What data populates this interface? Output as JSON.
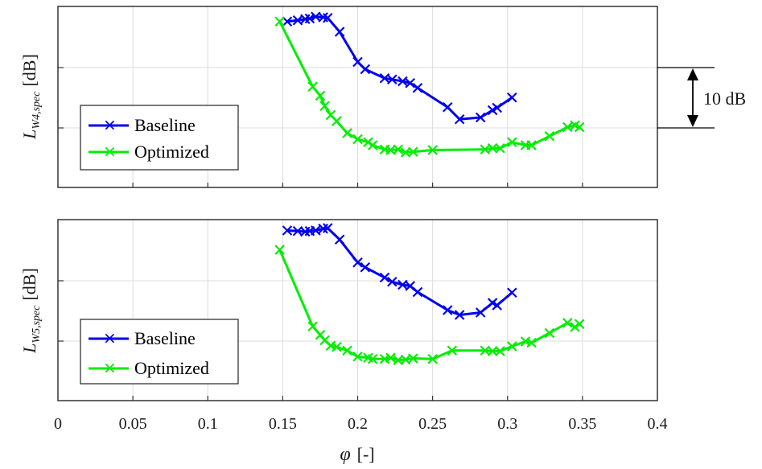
{
  "chart_data": [
    {
      "type": "line",
      "ylabel_main": "L",
      "ylabel_sub": "W4,spec",
      "ylabel_unit": "[dB]",
      "xlim": [
        0,
        0.4
      ],
      "grid": true,
      "legend_position": "lower-left",
      "annotation": "10 dB",
      "series": [
        {
          "name": "Baseline",
          "color": "#0000ee",
          "x": [
            0.153,
            0.16,
            0.165,
            0.168,
            0.172,
            0.177,
            0.18,
            0.188,
            0.2,
            0.205,
            0.218,
            0.223,
            0.23,
            0.235,
            0.24,
            0.26,
            0.268,
            0.282,
            0.29,
            0.293,
            0.303
          ],
          "y": [
            12.0,
            12.2,
            12.4,
            12.5,
            12.8,
            12.7,
            12.6,
            10.3,
            5.3,
            4.1,
            2.6,
            2.4,
            2.1,
            1.8,
            1.0,
            -2.2,
            -4.2,
            -3.9,
            -2.7,
            -2.3,
            -0.6
          ]
        },
        {
          "name": "Optimized",
          "color": "#00ee00",
          "x": [
            0.148,
            0.17,
            0.175,
            0.178,
            0.182,
            0.186,
            0.193,
            0.2,
            0.207,
            0.21,
            0.218,
            0.222,
            0.227,
            0.232,
            0.237,
            0.25,
            0.285,
            0.29,
            0.295,
            0.303,
            0.312,
            0.316,
            0.328,
            0.34,
            0.345,
            0.348
          ],
          "y": [
            12.0,
            1.2,
            -0.3,
            -2.0,
            -3.5,
            -4.5,
            -6.5,
            -7.5,
            -8.0,
            -8.5,
            -9.2,
            -9.3,
            -9.2,
            -9.7,
            -9.6,
            -9.3,
            -9.2,
            -9.0,
            -9.0,
            -8.0,
            -8.5,
            -8.5,
            -7.0,
            -5.5,
            -5.2,
            -5.5
          ]
        }
      ]
    },
    {
      "type": "line",
      "ylabel_main": "L",
      "ylabel_sub": "W5,spec",
      "ylabel_unit": "[dB]",
      "xlabel_main": "φ",
      "xlabel_unit": "[-]",
      "xlim": [
        0,
        0.4
      ],
      "x_ticks": [
        "0",
        "0.05",
        "0.1",
        "0.15",
        "0.2",
        "0.25",
        "0.3",
        "0.35",
        "0.4"
      ],
      "grid": true,
      "legend_position": "lower-left",
      "series": [
        {
          "name": "Baseline",
          "color": "#0000ee",
          "x": [
            0.153,
            0.16,
            0.165,
            0.168,
            0.172,
            0.177,
            0.18,
            0.188,
            0.2,
            0.205,
            0.218,
            0.223,
            0.23,
            0.235,
            0.24,
            0.26,
            0.268,
            0.282,
            0.29,
            0.293,
            0.303
          ],
          "y": [
            8.7,
            8.6,
            8.5,
            8.6,
            8.7,
            9.0,
            9.1,
            7.2,
            3.4,
            2.6,
            0.9,
            0.2,
            -0.3,
            -0.5,
            -1.5,
            -4.5,
            -5.3,
            -4.9,
            -3.3,
            -3.7,
            -1.6
          ]
        },
        {
          "name": "Optimized",
          "color": "#00ee00",
          "x": [
            0.148,
            0.17,
            0.175,
            0.178,
            0.182,
            0.186,
            0.193,
            0.2,
            0.207,
            0.21,
            0.218,
            0.222,
            0.227,
            0.232,
            0.237,
            0.25,
            0.263,
            0.285,
            0.29,
            0.295,
            0.303,
            0.312,
            0.316,
            0.328,
            0.34,
            0.345,
            0.348
          ],
          "y": [
            5.5,
            -7.2,
            -8.6,
            -9.5,
            -10.4,
            -10.6,
            -11.2,
            -12.2,
            -12.4,
            -12.6,
            -12.6,
            -12.4,
            -12.8,
            -12.7,
            -12.5,
            -12.6,
            -11.2,
            -11.2,
            -11.3,
            -11.3,
            -10.5,
            -9.7,
            -9.9,
            -8.3,
            -6.6,
            -7.3,
            -6.8
          ]
        }
      ]
    }
  ]
}
